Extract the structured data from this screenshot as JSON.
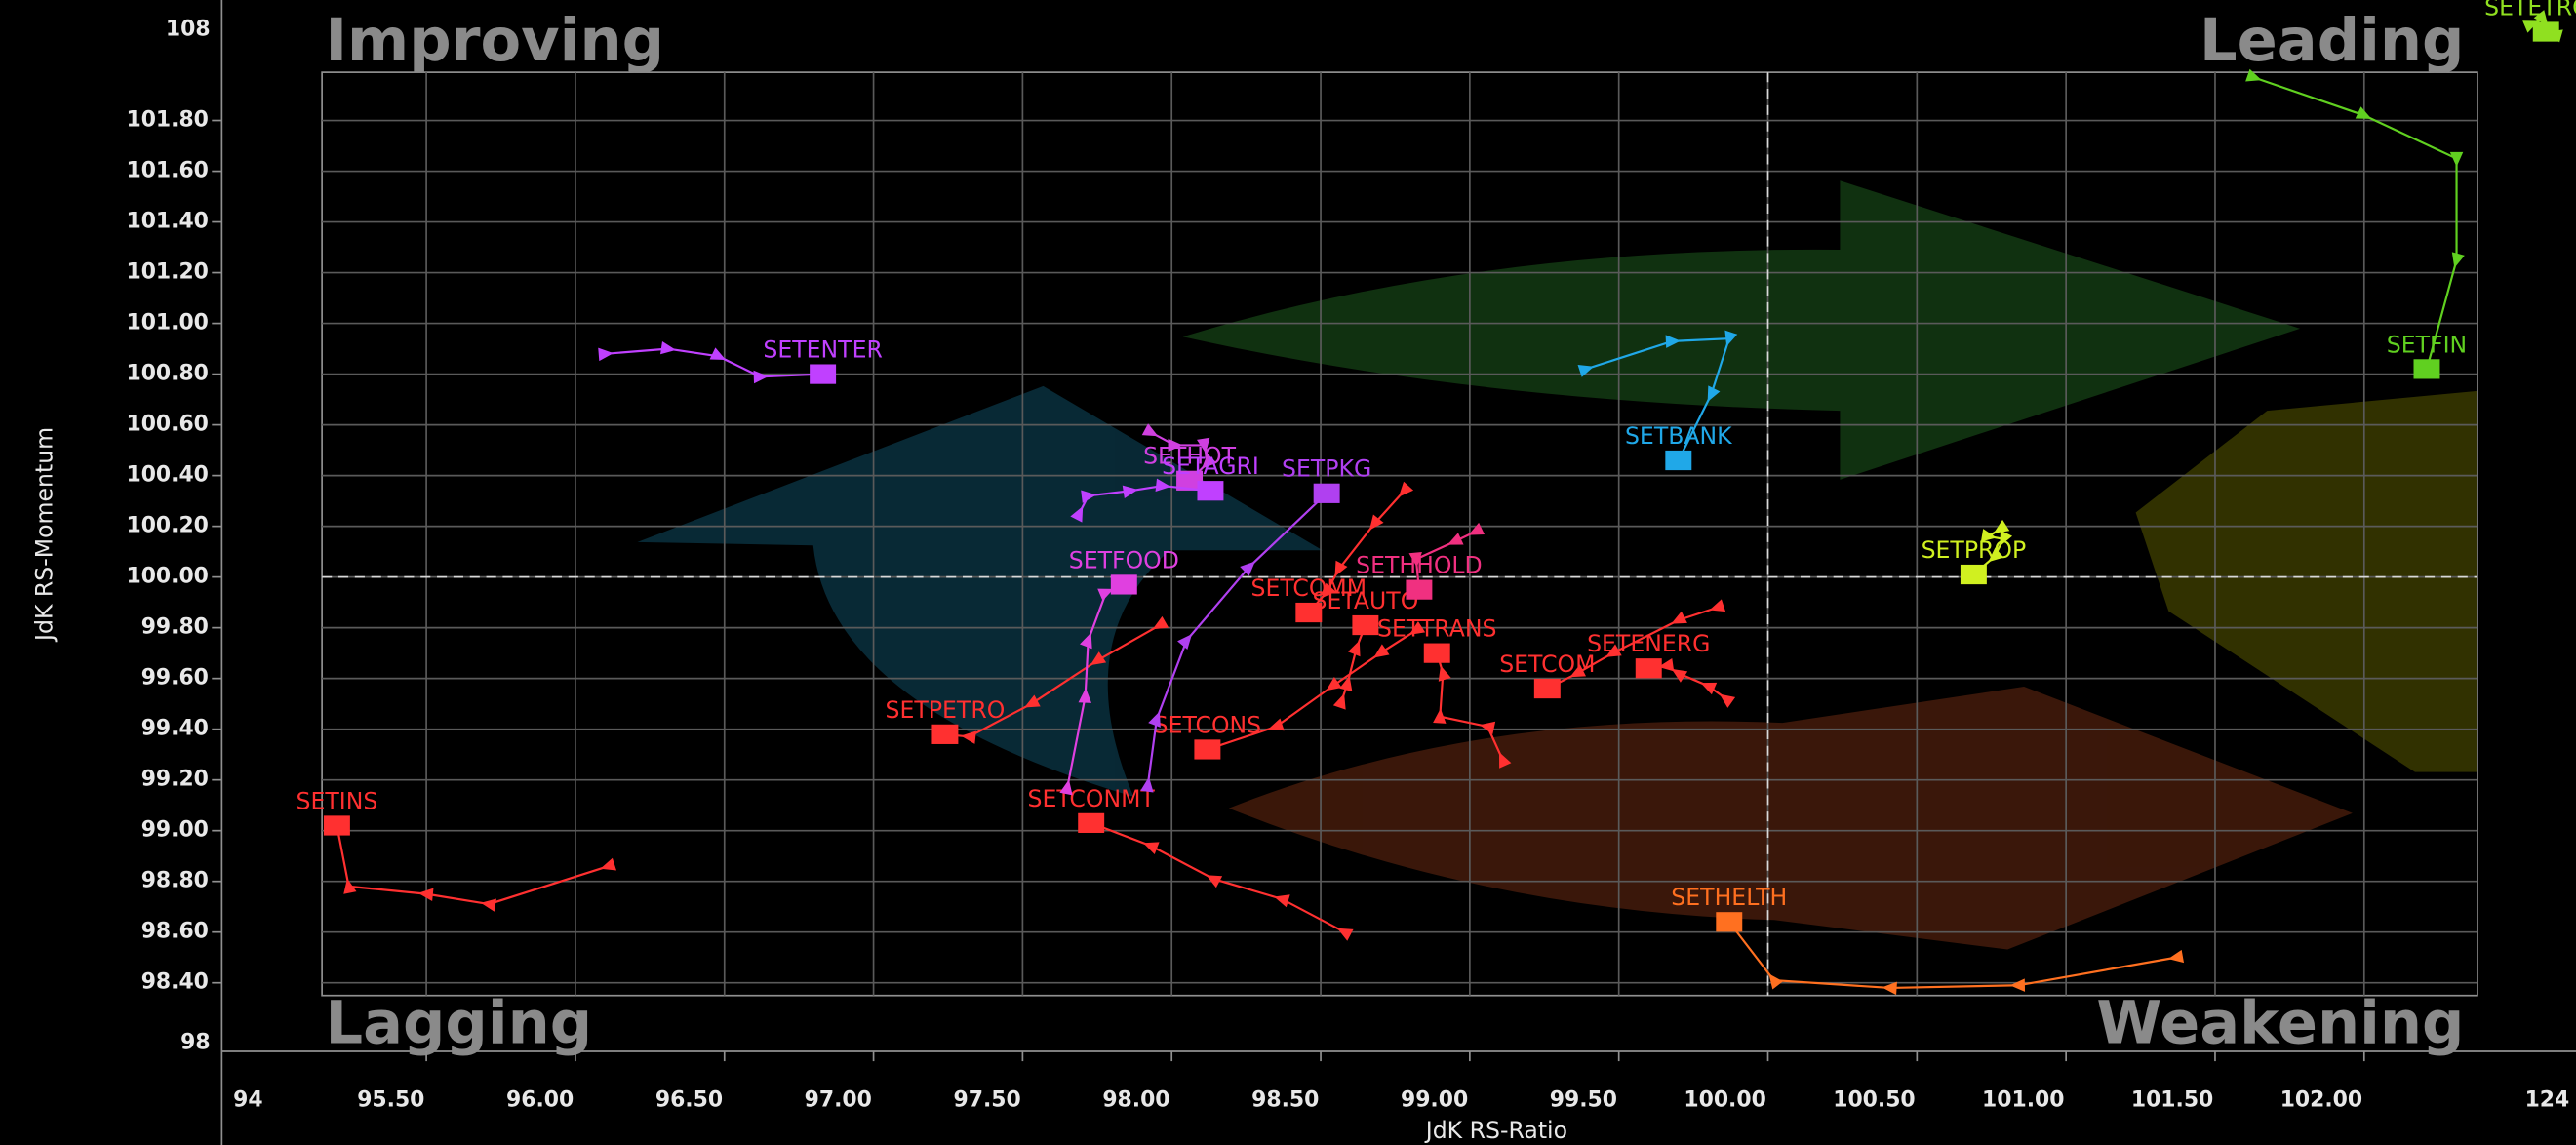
{
  "chart_data": {
    "type": "rrg",
    "x_label": "JdK RS-Ratio",
    "y_label": "JdK RS-Momentum",
    "quadrants": {
      "improving": "Improving",
      "leading": "Leading",
      "lagging": "Lagging",
      "weakening": "Weakening"
    },
    "axis_break_labels": {
      "y_top": "108",
      "y_bottom": "98",
      "x_left": "94",
      "x_right": "124"
    },
    "xlim": [
      95.15,
      102.38
    ],
    "ylim": [
      98.35,
      101.99
    ],
    "center": [
      100,
      100
    ],
    "grid": true,
    "xticks": [
      {
        "value": 95.5,
        "label": "95.50"
      },
      {
        "value": 96,
        "label": "96.00"
      },
      {
        "value": 96.5,
        "label": "96.50"
      },
      {
        "value": 97,
        "label": "97.00"
      },
      {
        "value": 97.5,
        "label": "97.50"
      },
      {
        "value": 98,
        "label": "98.00"
      },
      {
        "value": 98.5,
        "label": "98.50"
      },
      {
        "value": 99,
        "label": "99.00"
      },
      {
        "value": 99.5,
        "label": "99.50"
      },
      {
        "value": 100,
        "label": "100.00"
      },
      {
        "value": 100.5,
        "label": "100.50"
      },
      {
        "value": 101,
        "label": "101.00"
      },
      {
        "value": 101.5,
        "label": "101.50"
      },
      {
        "value": 102,
        "label": "102.00"
      }
    ],
    "yticks": [
      {
        "value": 98.4,
        "label": "98.40"
      },
      {
        "value": 98.6,
        "label": "98.60"
      },
      {
        "value": 98.8,
        "label": "98.80"
      },
      {
        "value": 99,
        "label": "99.00"
      },
      {
        "value": 99.2,
        "label": "99.20"
      },
      {
        "value": 99.4,
        "label": "99.40"
      },
      {
        "value": 99.6,
        "label": "99.60"
      },
      {
        "value": 99.8,
        "label": "99.80"
      },
      {
        "value": 100,
        "label": "100.00"
      },
      {
        "value": 100.2,
        "label": "100.20"
      },
      {
        "value": 100.4,
        "label": "100.40"
      },
      {
        "value": 100.6,
        "label": "100.60"
      },
      {
        "value": 100.8,
        "label": "100.80"
      },
      {
        "value": 101,
        "label": "101.00"
      },
      {
        "value": 101.2,
        "label": "101.20"
      },
      {
        "value": 101.4,
        "label": "101.40"
      },
      {
        "value": 101.6,
        "label": "101.60"
      },
      {
        "value": 101.8,
        "label": "101.80"
      }
    ],
    "series": [
      {
        "name": "SETENTER",
        "color": "#c040ff",
        "x": [
          96.1,
          96.31,
          96.48,
          96.62,
          96.83
        ],
        "values": [
          100.88,
          100.9,
          100.87,
          100.79,
          100.8
        ]
      },
      {
        "name": "SETBANK",
        "color": "#20a8e8",
        "x": [
          99.39,
          99.68,
          99.87,
          99.81,
          99.7
        ],
        "values": [
          100.82,
          100.93,
          100.94,
          100.72,
          100.46
        ]
      },
      {
        "name": "SETFIN",
        "color": "#60d020",
        "x": [
          101.63,
          102.0,
          102.31,
          102.31,
          102.21
        ],
        "values": [
          101.97,
          101.82,
          101.65,
          101.25,
          100.82
        ]
      },
      {
        "name": "SETETRON",
        "color": "#90e020",
        "x": [
          102.56,
          102.6,
          102.64,
          102.61
        ],
        "values": [
          102.18,
          102.2,
          102.14,
          102.15
        ]
      },
      {
        "name": "SETPROP",
        "color": "#d0f020",
        "x": [
          100.78,
          100.74,
          100.79,
          100.76,
          100.69
        ],
        "values": [
          100.19,
          100.16,
          100.15,
          100.08,
          100.01
        ]
      },
      {
        "name": "SETHELTH",
        "color": "#ff7020",
        "x": [
          101.37,
          100.84,
          100.41,
          100.02,
          99.87
        ],
        "values": [
          98.5,
          98.39,
          98.38,
          98.41,
          98.64
        ]
      },
      {
        "name": "SETINS",
        "color": "#ff3030",
        "x": [
          96.11,
          95.71,
          95.5,
          95.24,
          95.2
        ],
        "values": [
          98.86,
          98.71,
          98.75,
          98.78,
          99.02
        ]
      },
      {
        "name": "SETCONMT",
        "color": "#ff3030",
        "x": [
          98.58,
          98.37,
          98.14,
          97.93,
          97.73
        ],
        "values": [
          98.6,
          98.73,
          98.81,
          98.94,
          99.03
        ]
      },
      {
        "name": "SETPETRO",
        "color": "#ff3030",
        "x": [
          97.96,
          97.75,
          97.53,
          97.32,
          97.24
        ],
        "values": [
          99.81,
          99.67,
          99.5,
          99.37,
          99.38
        ]
      },
      {
        "name": "SETCONS",
        "color": "#ff3030",
        "x": [
          98.82,
          98.7,
          98.54,
          98.35,
          98.12
        ],
        "values": [
          99.79,
          99.7,
          99.57,
          99.41,
          99.32
        ]
      },
      {
        "name": "SETTRANS",
        "color": "#ff3030",
        "x": [
          99.11,
          99.06,
          98.9,
          98.91,
          98.89
        ],
        "values": [
          99.28,
          99.41,
          99.45,
          99.62,
          99.7
        ]
      },
      {
        "name": "SETENERG",
        "color": "#ff3030",
        "x": [
          99.86,
          99.8,
          99.7,
          99.66,
          99.6
        ],
        "values": [
          99.52,
          99.57,
          99.62,
          99.65,
          99.64
        ]
      },
      {
        "name": "SETCOM",
        "color": "#ff3030",
        "x": [
          99.83,
          99.7,
          99.48,
          99.36,
          99.26
        ],
        "values": [
          99.88,
          99.83,
          99.7,
          99.62,
          99.56
        ]
      },
      {
        "name": "SETAUTO",
        "color": "#ff3030",
        "x": [
          98.57,
          98.59,
          98.62,
          98.65
        ],
        "values": [
          99.51,
          99.58,
          99.72,
          99.81
        ]
      },
      {
        "name": "SETCOMM",
        "color": "#ff3030",
        "x": [
          98.78,
          98.68,
          98.56,
          98.52,
          98.46
        ],
        "values": [
          100.34,
          100.21,
          100.03,
          99.94,
          99.86
        ]
      },
      {
        "name": "SETHHOLD",
        "color": "#f03080",
        "x": [
          99.02,
          98.95,
          98.82,
          98.83
        ],
        "values": [
          100.18,
          100.14,
          100.07,
          99.95
        ]
      },
      {
        "name": "SETFOOD",
        "color": "#e040e0",
        "x": [
          97.65,
          97.71,
          97.72,
          97.78,
          97.84
        ],
        "values": [
          99.17,
          99.53,
          99.75,
          99.94,
          99.97
        ]
      },
      {
        "name": "SETPKG",
        "color": "#b040f0",
        "x": [
          97.92,
          97.95,
          98.05,
          98.26,
          98.52
        ],
        "values": [
          99.18,
          99.44,
          99.75,
          100.04,
          100.33
        ]
      },
      {
        "name": "SETHOT",
        "color": "#d040e0",
        "x": [
          97.93,
          98.01,
          98.11,
          98.12,
          98.06
        ],
        "values": [
          100.57,
          100.52,
          100.52,
          100.45,
          100.38
        ]
      },
      {
        "name": "SETAGRI",
        "color": "#c040ff",
        "x": [
          97.69,
          97.72,
          97.86,
          97.97,
          98.13
        ],
        "values": [
          100.25,
          100.32,
          100.34,
          100.36,
          100.34
        ]
      }
    ]
  }
}
